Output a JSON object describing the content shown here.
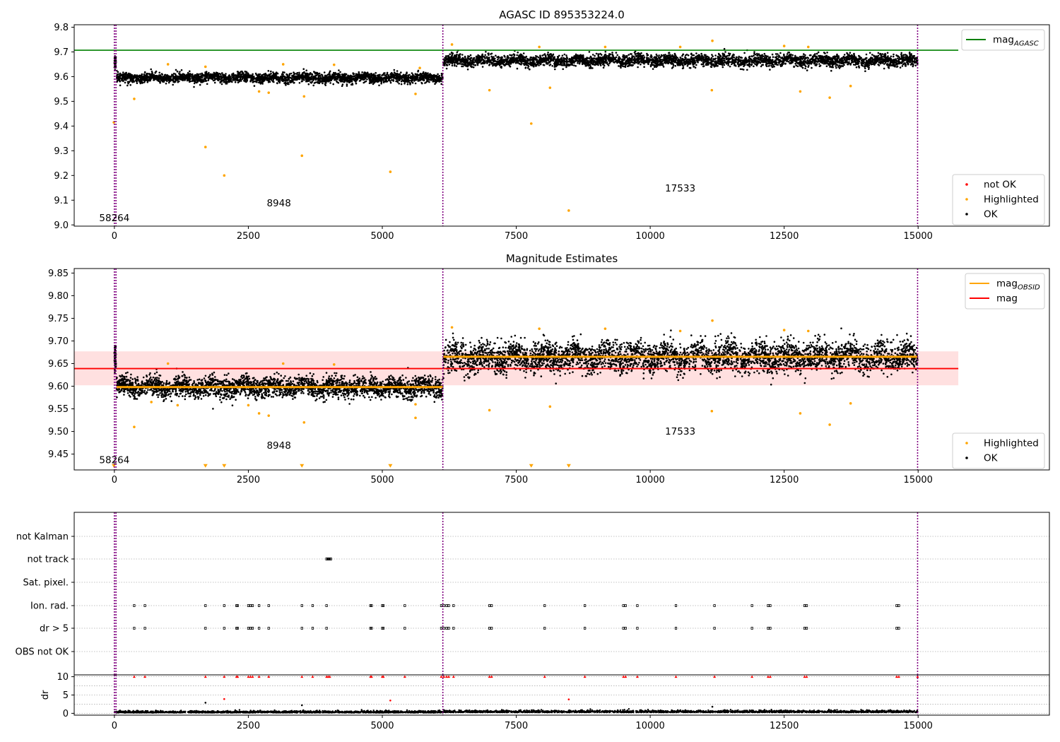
{
  "figure_title": "AGASC ID 895353224.0",
  "chart_data": [
    {
      "type": "scatter",
      "panel": "top",
      "title": "AGASC ID 895353224.0",
      "xlim": [
        -750,
        17450
      ],
      "ylim": [
        8.995,
        9.81
      ],
      "xticks": [
        0,
        2500,
        5000,
        7500,
        10000,
        12500,
        15000
      ],
      "xtick_labels": [
        "0",
        "2500",
        "5000",
        "7500",
        "10000",
        "12500",
        "15000"
      ],
      "yticks": [
        9.0,
        9.1,
        9.2,
        9.3,
        9.4,
        9.5,
        9.6,
        9.7,
        9.8
      ],
      "ytick_labels": [
        "9.0",
        "9.1",
        "9.2",
        "9.3",
        "9.4",
        "9.5",
        "9.6",
        "9.7",
        "9.8"
      ],
      "hlines": [
        {
          "name": "mag_AGASC",
          "y": 9.707,
          "x": [
            -750,
            15750
          ],
          "color": "#008000"
        }
      ],
      "vlines": [
        {
          "x": 0,
          "color": "#800080"
        },
        {
          "x": 30,
          "color": "#800080"
        },
        {
          "x": 6130,
          "color": "#800080"
        },
        {
          "x": 14990,
          "color": "#800080"
        }
      ],
      "annotations": [
        {
          "text": "58264",
          "x": 0,
          "y": 9.015
        },
        {
          "text": "8948",
          "x": 3070,
          "y": 9.075
        },
        {
          "text": "17533",
          "x": 10560,
          "y": 9.135
        }
      ],
      "legend": {
        "placement": "top-right",
        "entries": [
          {
            "label": "mag",
            "sub": "AGASC",
            "marker": "line",
            "color": "#008000"
          }
        ]
      },
      "legend2": {
        "placement": "bottom-right",
        "entries": [
          {
            "label": "not OK",
            "marker": "dot",
            "color": "#ff0000"
          },
          {
            "label": "Highlighted",
            "marker": "dot",
            "color": "#ffa500"
          },
          {
            "label": "OK",
            "marker": "dot",
            "color": "#000000"
          }
        ]
      },
      "series": [
        {
          "name": "OK",
          "color": "#000000",
          "segments": [
            {
              "x": [
                0,
                30
              ],
              "center": 9.66,
              "spread": 0.025
            },
            {
              "x": [
                40,
                6130
              ],
              "center": 9.595,
              "spread": 0.018
            },
            {
              "x": [
                6140,
                14990
              ],
              "center": 9.665,
              "spread": 0.022
            }
          ]
        },
        {
          "name": "Highlighted",
          "color": "#ffa500",
          "points": [
            [
              -10,
              9.415
            ],
            [
              370,
              9.51
            ],
            [
              1700,
              9.315
            ],
            [
              2050,
              9.2
            ],
            [
              3500,
              9.28
            ],
            [
              5150,
              9.215
            ],
            [
              7780,
              9.41
            ],
            [
              8480,
              9.058
            ],
            [
              7000,
              9.545
            ],
            [
              8130,
              9.555
            ],
            [
              11150,
              9.545
            ],
            [
              12800,
              9.54
            ],
            [
              13350,
              9.515
            ],
            [
              13740,
              9.562
            ],
            [
              3540,
              9.52
            ],
            [
              2880,
              9.535
            ],
            [
              2700,
              9.54
            ],
            [
              5620,
              9.53
            ],
            [
              6300,
              9.73
            ],
            [
              11160,
              9.745
            ],
            [
              10560,
              9.72
            ],
            [
              12500,
              9.724
            ],
            [
              1000,
              9.65
            ],
            [
              3150,
              9.65
            ],
            [
              4100,
              9.648
            ],
            [
              1700,
              9.64
            ],
            [
              5700,
              9.635
            ],
            [
              9160,
              9.72
            ],
            [
              7930,
              9.72
            ],
            [
              12950,
              9.72
            ]
          ]
        }
      ]
    },
    {
      "type": "scatter",
      "panel": "middle",
      "title": "Magnitude Estimates",
      "xlim": [
        -750,
        17450
      ],
      "ylim": [
        9.415,
        9.86
      ],
      "xticks": [
        0,
        2500,
        5000,
        7500,
        10000,
        12500,
        15000
      ],
      "xtick_labels": [
        "0",
        "2500",
        "5000",
        "7500",
        "10000",
        "12500",
        "15000"
      ],
      "yticks": [
        9.45,
        9.5,
        9.55,
        9.6,
        9.65,
        9.7,
        9.75,
        9.8,
        9.85
      ],
      "ytick_labels": [
        "9.45",
        "9.50",
        "9.55",
        "9.60",
        "9.65",
        "9.70",
        "9.75",
        "9.80",
        "9.85"
      ],
      "band": {
        "y": [
          9.602,
          9.677
        ],
        "x": [
          -750,
          15750
        ],
        "color": "#ffcccc"
      },
      "hlines": [
        {
          "name": "mag",
          "y": 9.639,
          "x": [
            -750,
            15750
          ],
          "color": "#ff0000"
        },
        {
          "name": "mag_OBSID",
          "y": 9.598,
          "x": [
            40,
            6130
          ],
          "color": "#ffa500"
        },
        {
          "name": "mag_OBSID",
          "y": 9.665,
          "x": [
            6140,
            14990
          ],
          "color": "#ffa500"
        }
      ],
      "vlines": [
        {
          "x": 0,
          "color": "#800080"
        },
        {
          "x": 30,
          "color": "#800080"
        },
        {
          "x": 6130,
          "color": "#800080"
        },
        {
          "x": 14990,
          "color": "#800080"
        }
      ],
      "annotations": [
        {
          "text": "58264",
          "x": 0,
          "y": 9.43
        },
        {
          "text": "8948",
          "x": 3070,
          "y": 9.462
        },
        {
          "text": "17533",
          "x": 10560,
          "y": 9.493
        }
      ],
      "legend": {
        "placement": "top-right",
        "entries": [
          {
            "label": "mag",
            "sub": "OBSID",
            "marker": "line",
            "color": "#ffa500"
          },
          {
            "label": "mag",
            "marker": "line",
            "color": "#ff0000"
          }
        ]
      },
      "legend2": {
        "placement": "bottom-right",
        "entries": [
          {
            "label": "Highlighted",
            "marker": "dot",
            "color": "#ffa500"
          },
          {
            "label": "OK",
            "marker": "dot",
            "color": "#000000"
          }
        ]
      },
      "series": [
        {
          "name": "OK",
          "color": "#000000",
          "segments": [
            {
              "x": [
                0,
                30
              ],
              "center": 9.66,
              "spread": 0.025
            },
            {
              "x": [
                40,
                6130
              ],
              "center": 9.598,
              "spread": 0.02
            },
            {
              "x": [
                6140,
                14990
              ],
              "center": 9.665,
              "spread": 0.03
            }
          ]
        },
        {
          "name": "Highlighted",
          "color": "#ffa500",
          "points": [
            [
              370,
              9.51
            ],
            [
              7000,
              9.547
            ],
            [
              8130,
              9.555
            ],
            [
              11150,
              9.545
            ],
            [
              12800,
              9.54
            ],
            [
              13350,
              9.515
            ],
            [
              13740,
              9.562
            ],
            [
              3540,
              9.52
            ],
            [
              2880,
              9.535
            ],
            [
              2700,
              9.54
            ],
            [
              5620,
              9.53
            ],
            [
              6300,
              9.73
            ],
            [
              11160,
              9.745
            ],
            [
              10560,
              9.722
            ],
            [
              12500,
              9.724
            ],
            [
              1000,
              9.65
            ],
            [
              3150,
              9.65
            ],
            [
              4100,
              9.648
            ],
            [
              9160,
              9.727
            ],
            [
              7930,
              9.727
            ],
            [
              12950,
              9.722
            ],
            [
              690,
              9.565
            ],
            [
              1180,
              9.558
            ],
            [
              2500,
              9.558
            ],
            [
              5620,
              9.56
            ]
          ]
        },
        {
          "name": "Highlighted-offscale",
          "color": "#ffa500",
          "marker": "down-triangle",
          "points": [
            [
              -10,
              9.42
            ],
            [
              1700,
              9.42
            ],
            [
              2050,
              9.42
            ],
            [
              3500,
              9.42
            ],
            [
              5150,
              9.42
            ],
            [
              7780,
              9.42
            ],
            [
              8480,
              9.42
            ]
          ]
        }
      ]
    },
    {
      "type": "scatter",
      "panel": "bottom-flags",
      "xlim": [
        -750,
        17450
      ],
      "categories": [
        "not Kalman",
        "not track",
        "Sat. pixel.",
        "Ion. rad.",
        "dr > 5",
        "OBS not OK"
      ],
      "flag_events": {
        "not track": [
          3960,
          3980,
          4000,
          4020,
          4040
        ],
        "Ion. rad.": [
          370,
          570,
          1700,
          2050,
          2280,
          2300,
          2500,
          2540,
          2580,
          2700,
          2880,
          3500,
          3700,
          3960,
          4780,
          4800,
          5000,
          5020,
          5420,
          6100,
          6150,
          6200,
          6240,
          6330,
          7000,
          7040,
          8030,
          8780,
          9500,
          9540,
          9760,
          10480,
          11200,
          11900,
          12200,
          12240,
          12880,
          12920,
          14600,
          14640
        ],
        "dr > 5": [
          370,
          570,
          1700,
          2050,
          2280,
          2300,
          2500,
          2540,
          2580,
          2700,
          2880,
          3500,
          3700,
          3960,
          4780,
          4800,
          5000,
          5020,
          5420,
          6100,
          6150,
          6200,
          6240,
          6330,
          7000,
          7040,
          8030,
          8780,
          9500,
          9540,
          9760,
          10480,
          11200,
          11900,
          12200,
          12240,
          12880,
          12920,
          14600,
          14640
        ]
      }
    },
    {
      "type": "scatter",
      "panel": "bottom-dr",
      "xlim": [
        -750,
        17450
      ],
      "ylim": [
        -0.5,
        10.5
      ],
      "ylabel": "dr",
      "yticks": [
        0,
        5,
        10
      ],
      "ytick_labels": [
        "0",
        "5",
        "10"
      ],
      "xticks": [
        0,
        2500,
        5000,
        7500,
        10000,
        12500,
        15000
      ],
      "xtick_labels": [
        "0",
        "2500",
        "5000",
        "7500",
        "10000",
        "12500",
        "15000"
      ],
      "clip_points_red": [
        370,
        570,
        1700,
        2050,
        2280,
        2300,
        2500,
        2540,
        2580,
        2700,
        2880,
        3500,
        3700,
        3960,
        3990,
        4020,
        4780,
        4800,
        5000,
        5020,
        5420,
        6100,
        6150,
        6200,
        6240,
        6330,
        7000,
        7040,
        8030,
        8780,
        9500,
        9540,
        9760,
        10480,
        11200,
        11900,
        12200,
        12240,
        12880,
        12920,
        14600,
        14640,
        14990
      ],
      "dr_outliers": [
        [
          1700,
          2.9
        ],
        [
          2050,
          3.9
        ],
        [
          5150,
          3.5
        ],
        [
          8480,
          3.8
        ],
        [
          3500,
          2.2
        ],
        [
          11160,
          1.8
        ]
      ]
    }
  ]
}
